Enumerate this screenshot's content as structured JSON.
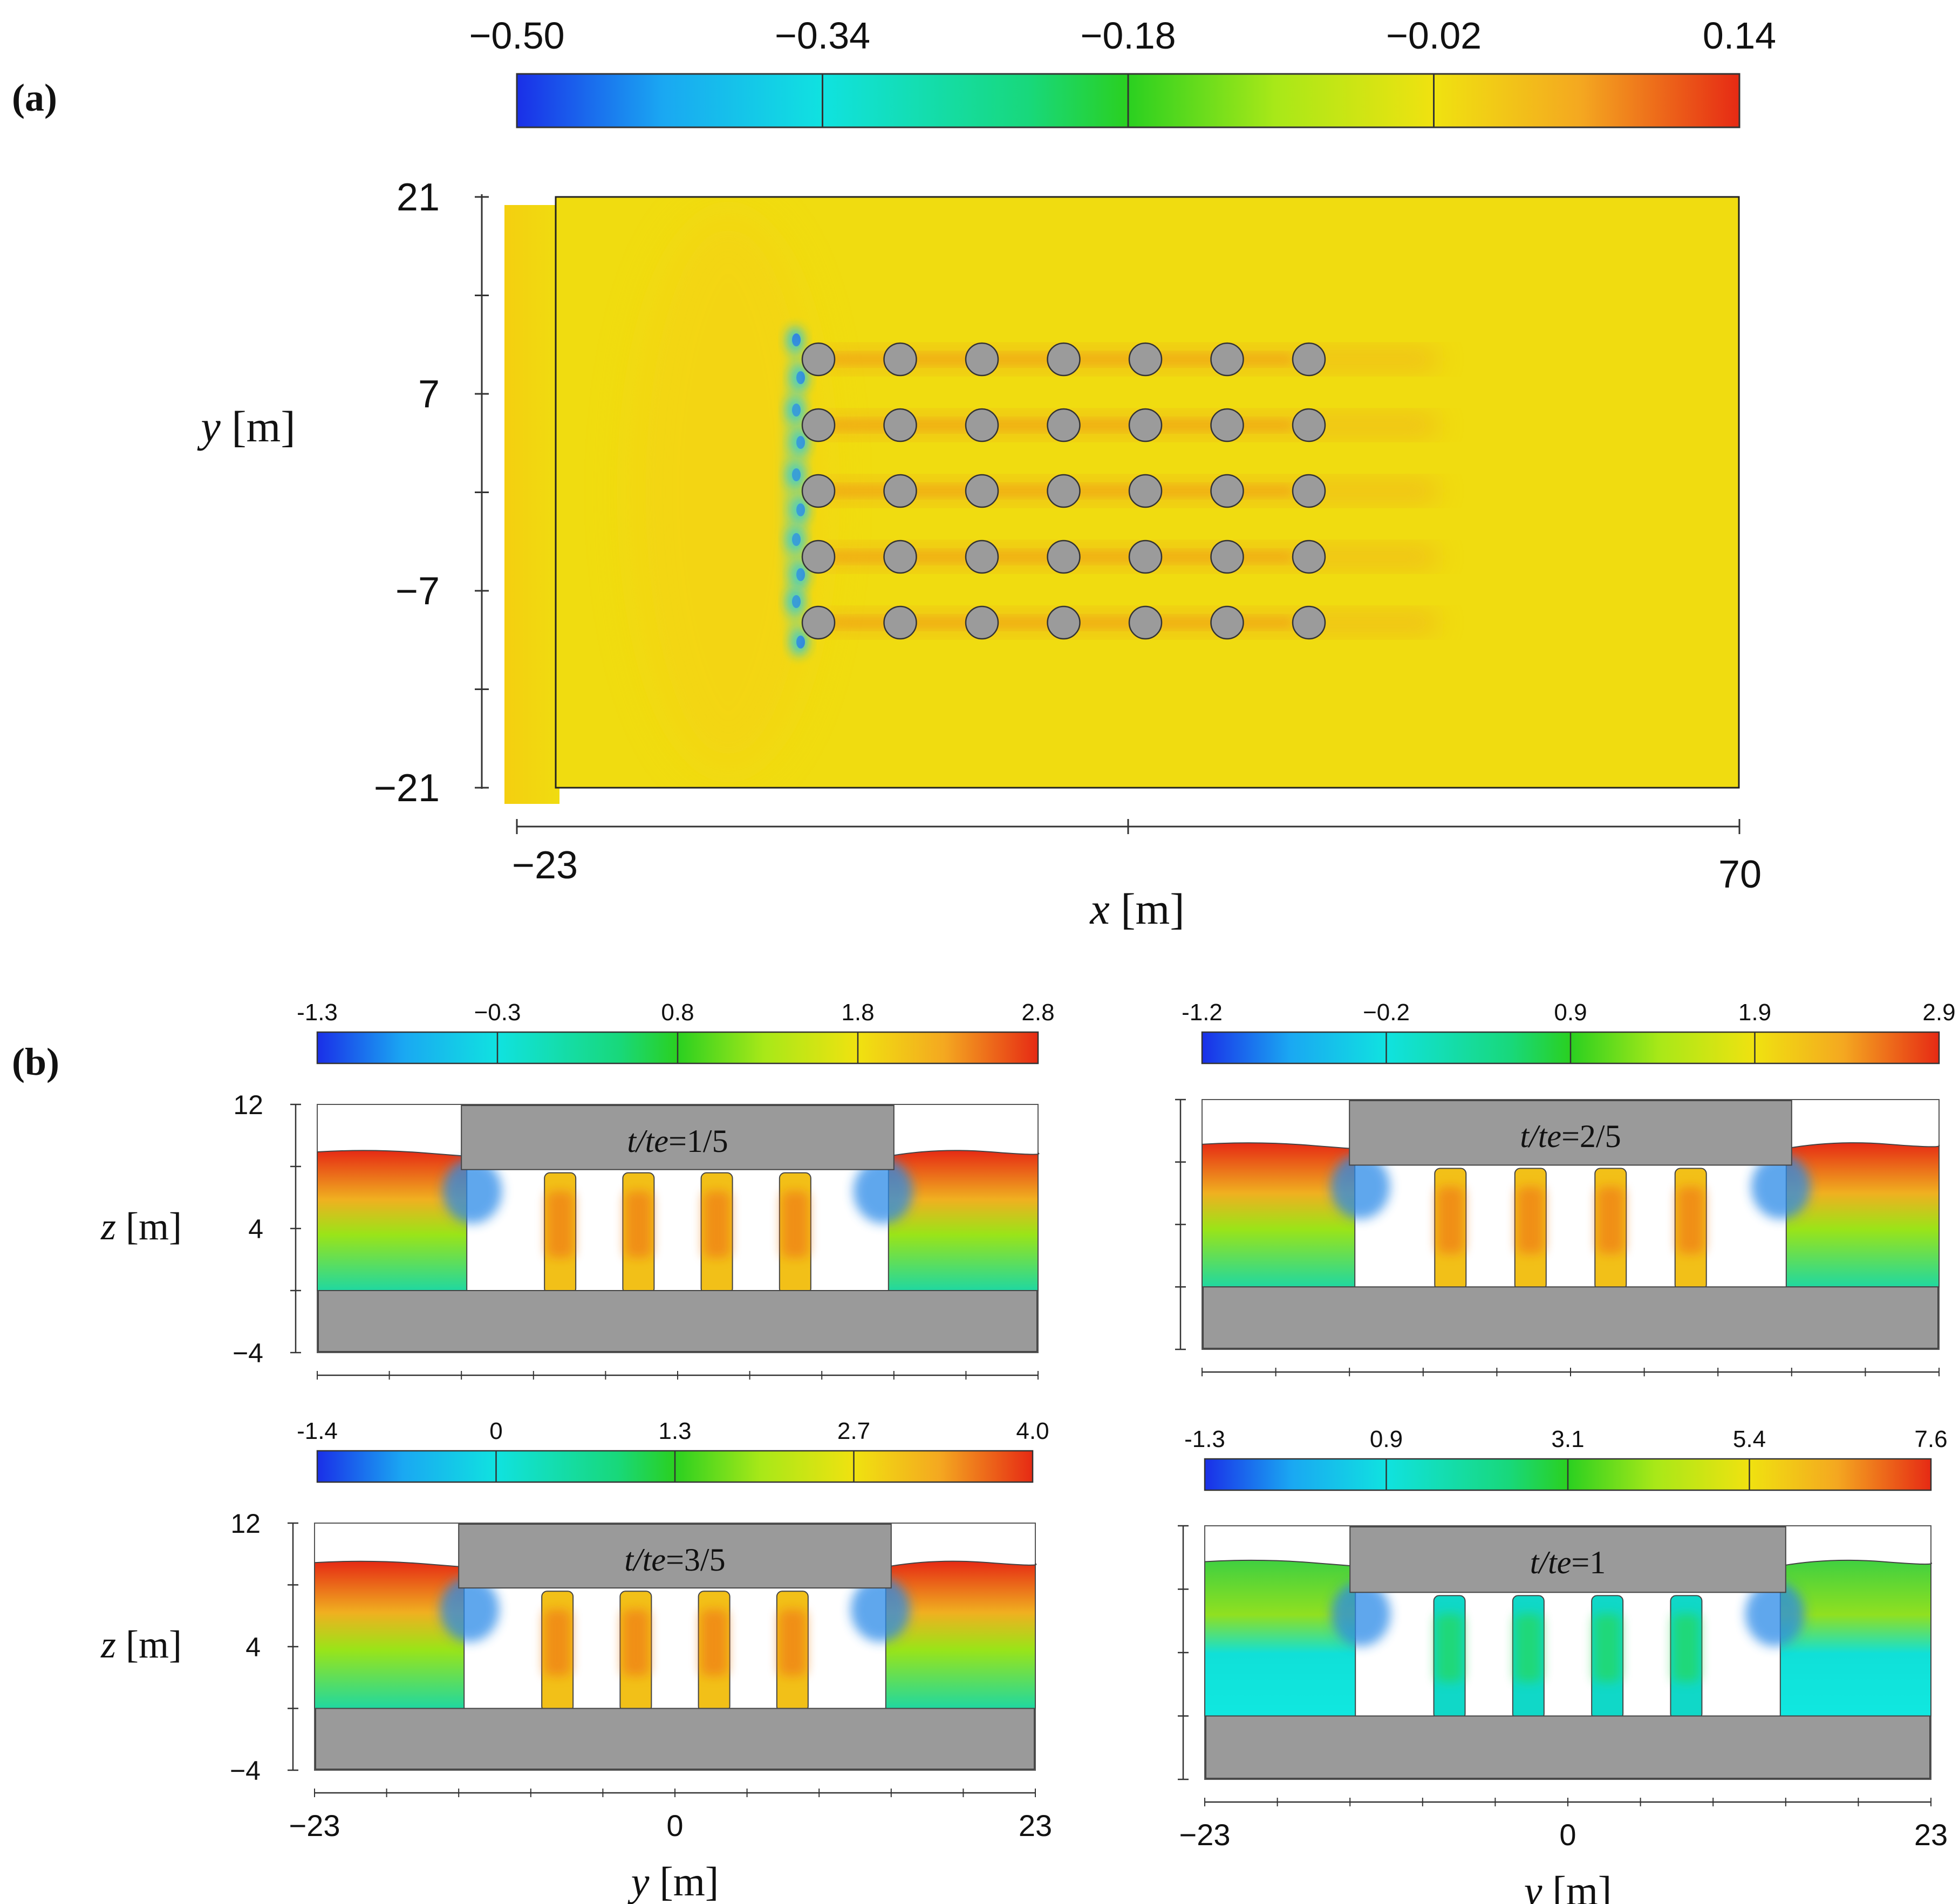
{
  "chart_data": [
    {
      "id": "a",
      "panel_label": "(a)",
      "type": "heatmap",
      "description_kind": "contour",
      "colorbar": {
        "ticks": [
          "−0.50",
          "−0.34",
          "−0.18",
          "−0.02",
          "0.14"
        ],
        "range": [
          -0.5,
          0.14
        ]
      },
      "x_axis": {
        "var": "x",
        "unit": "[m]",
        "ticks": [
          "−23",
          "70"
        ],
        "range": [
          -23,
          70
        ]
      },
      "y_axis": {
        "var": "y",
        "unit": "[m]",
        "ticks": [
          "21",
          "7",
          "−7",
          "−21"
        ],
        "range": [
          -21,
          21
        ]
      },
      "pile_grid": {
        "rows": 5,
        "cols": 7
      },
      "background_value": -0.02,
      "wake_value": 0.06,
      "front_min_value": -0.45
    },
    {
      "id": "b",
      "panel_label": "(b)",
      "type": "heatmap",
      "description_kind": "contour",
      "x_axis": {
        "var": "y",
        "unit": "[m]",
        "ticks": [
          "−23",
          "0",
          "23"
        ],
        "range": [
          -23,
          23
        ]
      },
      "y_axis": {
        "var": "z",
        "unit": "[m]",
        "ticks": [
          "12",
          "4",
          "−4"
        ],
        "range": [
          -4,
          12
        ]
      },
      "subplots": [
        {
          "time_label": "t/te=1/5",
          "time_var": "t/te",
          "time_val": "=1/5",
          "colorbar_ticks": [
            "-1.3",
            "−0.3",
            "0.8",
            "1.8",
            "2.8"
          ],
          "range": [
            -1.3,
            2.8
          ],
          "free_surface_z": 8.8
        },
        {
          "time_label": "t/te=2/5",
          "time_var": "t/te",
          "time_val": "=2/5",
          "colorbar_ticks": [
            "-1.2",
            "−0.2",
            "0.9",
            "1.9",
            "2.9"
          ],
          "range": [
            -1.2,
            2.9
          ],
          "free_surface_z": 9.0
        },
        {
          "time_label": "t/te=3/5",
          "time_var": "t/te",
          "time_val": "=3/5",
          "colorbar_ticks": [
            "-1.4",
            "0",
            "1.3",
            "2.7",
            "4.0"
          ],
          "range": [
            -1.4,
            4.0
          ],
          "free_surface_z": 9.3
        },
        {
          "time_label": "t/te=1",
          "time_var": "t/te",
          "time_val": "=1",
          "colorbar_ticks": [
            "-1.3",
            "0.9",
            "3.1",
            "5.4",
            "7.6"
          ],
          "range": [
            -1.3,
            7.6
          ],
          "free_surface_z": 9.6
        }
      ]
    }
  ],
  "colors": {
    "scale": [
      "#1a2fe8",
      "#1ab0f0",
      "#10e8d8",
      "#18d860",
      "#a8e818",
      "#f0e210",
      "#f5b020",
      "#f06a18",
      "#e62a14"
    ],
    "structure": "#9a9a9a",
    "cylinder": "#9b9b9b",
    "background_field": "#f0dc10"
  }
}
